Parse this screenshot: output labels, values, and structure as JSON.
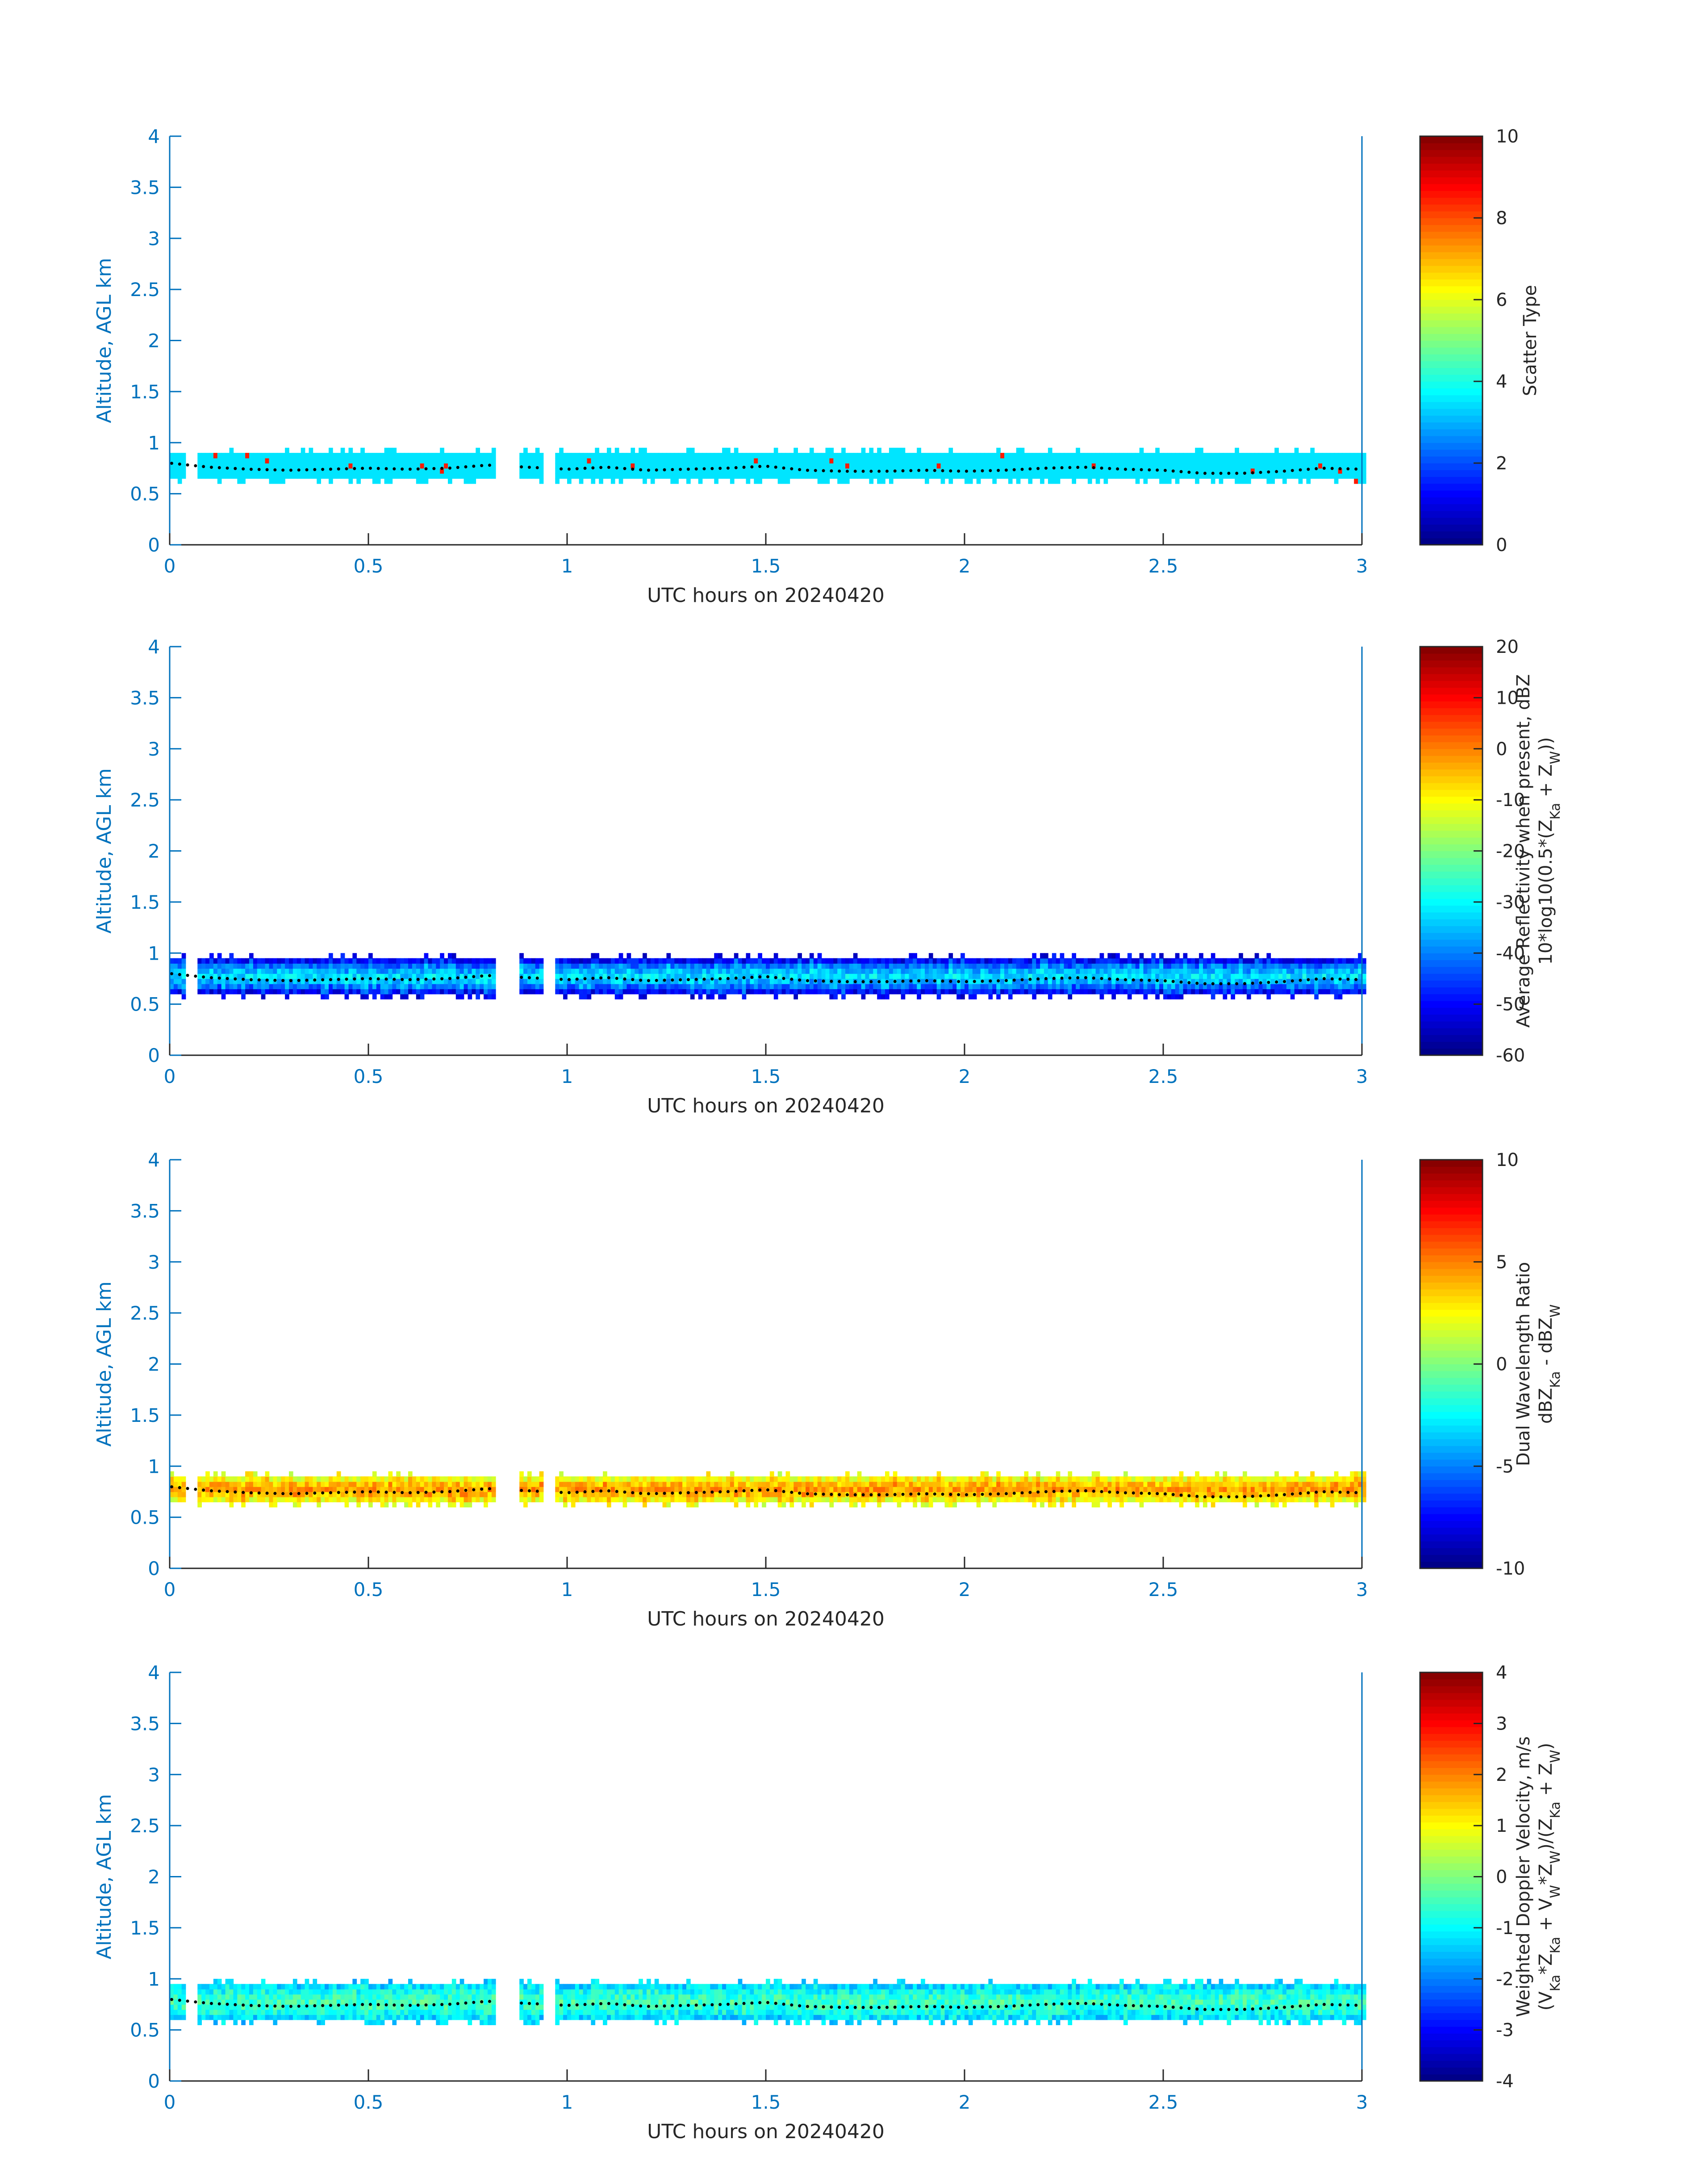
{
  "chart_data": [
    {
      "type": "heatmap",
      "xlabel": "UTC hours on 20240420",
      "ylabel": "Altitude, AGL km",
      "xlim": [
        0,
        3
      ],
      "ylim": [
        0,
        4
      ],
      "xticks": [
        "0",
        "0.5",
        "1",
        "1.5",
        "2",
        "2.5",
        "3"
      ],
      "yticks": [
        "0",
        "0.5",
        "1",
        "1.5",
        "2",
        "2.5",
        "3",
        "3.5",
        "4"
      ],
      "colorbar": {
        "label_lines": [
          "Scatter Type"
        ],
        "range": [
          0,
          10
        ],
        "ticks": [
          "0",
          "2",
          "4",
          "6",
          "8",
          "10"
        ],
        "colormap": "jet"
      },
      "layer": {
        "base": 0.65,
        "top": 0.88,
        "typical_value": 3.5,
        "speckle_values": [
          8.5
        ]
      },
      "data_gaps": [
        [
          0.82,
          0.88
        ],
        [
          0.94,
          0.97
        ]
      ]
    },
    {
      "type": "heatmap",
      "xlabel": "UTC hours on 20240420",
      "ylabel": "Altitude, AGL km",
      "xlim": [
        0,
        3
      ],
      "ylim": [
        0,
        4
      ],
      "xticks": [
        "0",
        "0.5",
        "1",
        "1.5",
        "2",
        "2.5",
        "3"
      ],
      "yticks": [
        "0",
        "0.5",
        "1",
        "1.5",
        "2",
        "2.5",
        "3",
        "3.5",
        "4"
      ],
      "colorbar": {
        "label_lines": [
          "Average Reflectivity when present, dBZ",
          "10*log10(0.5*(Z_Ka + Z_W))"
        ],
        "range": [
          -60,
          20
        ],
        "ticks": [
          "-60",
          "-50",
          "-40",
          "-30",
          "-20",
          "-10",
          "0",
          "10",
          "20"
        ],
        "colormap": "jet"
      },
      "layer": {
        "base": 0.6,
        "top": 0.95,
        "core_value": -32,
        "edge_value": -55
      },
      "data_gaps": [
        [
          0.82,
          0.88
        ],
        [
          0.94,
          0.97
        ]
      ]
    },
    {
      "type": "heatmap",
      "xlabel": "UTC hours on 20240420",
      "ylabel": "Altitude, AGL km",
      "xlim": [
        0,
        3
      ],
      "ylim": [
        0,
        4
      ],
      "xticks": [
        "0",
        "0.5",
        "1",
        "1.5",
        "2",
        "2.5",
        "3"
      ],
      "yticks": [
        "0",
        "0.5",
        "1",
        "1.5",
        "2",
        "2.5",
        "3",
        "3.5",
        "4"
      ],
      "colorbar": {
        "label_lines": [
          "Dual Wavelength Ratio",
          "dBZ_Ka - dBZ_W"
        ],
        "range": [
          -10,
          10
        ],
        "ticks": [
          "-10",
          "-5",
          "0",
          "5",
          "10"
        ],
        "colormap": "jet"
      },
      "layer": {
        "base": 0.65,
        "top": 0.9,
        "core_value": 4.5,
        "edge_value": 1.5
      },
      "data_gaps": [
        [
          0.82,
          0.88
        ],
        [
          0.94,
          0.97
        ]
      ]
    },
    {
      "type": "heatmap",
      "xlabel": "UTC hours on 20240420",
      "ylabel": "Altitude, AGL km",
      "xlim": [
        0,
        3
      ],
      "ylim": [
        0,
        4
      ],
      "xticks": [
        "0",
        "0.5",
        "1",
        "1.5",
        "2",
        "2.5",
        "3"
      ],
      "yticks": [
        "0",
        "0.5",
        "1",
        "1.5",
        "2",
        "2.5",
        "3",
        "3.5",
        "4"
      ],
      "colorbar": {
        "label_lines": [
          "Weighted Doppler Velocity, m/s",
          "(V_Ka*Z_Ka + V_W*Z_W)/(Z_Ka + Z_W)"
        ],
        "range": [
          -4,
          4
        ],
        "ticks": [
          "-4",
          "-3",
          "-2",
          "-1",
          "0",
          "1",
          "2",
          "3",
          "4"
        ],
        "colormap": "jet"
      },
      "layer": {
        "base": 0.6,
        "top": 0.95,
        "core_value": -0.5,
        "edge_value": -1.5
      },
      "data_gaps": [
        [
          0.82,
          0.88
        ],
        [
          0.94,
          0.97
        ]
      ]
    }
  ],
  "cloud_base_series": {
    "x": [
      0,
      0.1,
      0.2,
      0.3,
      0.4,
      0.5,
      0.6,
      0.7,
      0.8,
      1.0,
      1.1,
      1.2,
      1.3,
      1.4,
      1.5,
      1.6,
      1.7,
      1.8,
      1.9,
      2.0,
      2.1,
      2.2,
      2.3,
      2.4,
      2.5,
      2.6,
      2.7,
      2.8,
      2.9,
      3.0
    ],
    "y": [
      0.8,
      0.76,
      0.74,
      0.73,
      0.74,
      0.75,
      0.74,
      0.75,
      0.78,
      0.74,
      0.76,
      0.73,
      0.74,
      0.75,
      0.77,
      0.73,
      0.72,
      0.72,
      0.73,
      0.72,
      0.73,
      0.75,
      0.76,
      0.74,
      0.73,
      0.7,
      0.7,
      0.72,
      0.75,
      0.74
    ]
  }
}
